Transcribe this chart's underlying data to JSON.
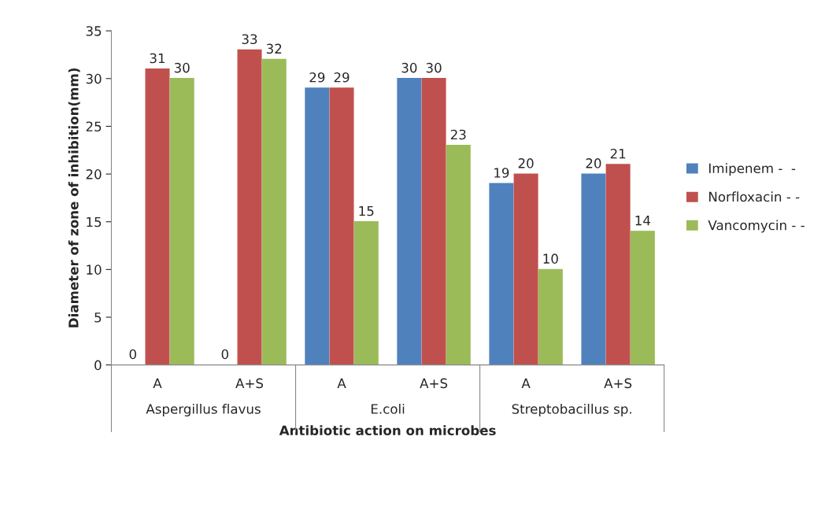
{
  "chart_data": {
    "type": "bar",
    "xlabel": "Antibiotic action on microbes",
    "ylabel": "Diameter of zone of inhibition(mm)",
    "categories": [
      "A",
      "A+S",
      "A",
      "A+S",
      "A",
      "A+S"
    ],
    "series": [
      {
        "name": "Imipenem -  -",
        "color": "#4f81bd",
        "values": [
          0,
          0,
          29,
          30,
          19,
          20
        ]
      },
      {
        "name": "Norfloxacin - -",
        "color": "#c0504d",
        "values": [
          31,
          33,
          29,
          30,
          20,
          21
        ]
      },
      {
        "name": "Vancomycin - -",
        "color": "#9bbb59",
        "values": [
          30,
          32,
          15,
          23,
          10,
          14
        ]
      }
    ],
    "ylim": [
      0,
      35
    ],
    "yticks": [
      0,
      5,
      10,
      15,
      20,
      25,
      30,
      35
    ],
    "data_labels": true,
    "legend": "right",
    "grid": false,
    "annotations": [
      "Aspergillus flavus",
      "E.coli",
      "Streptobacillus sp."
    ]
  }
}
